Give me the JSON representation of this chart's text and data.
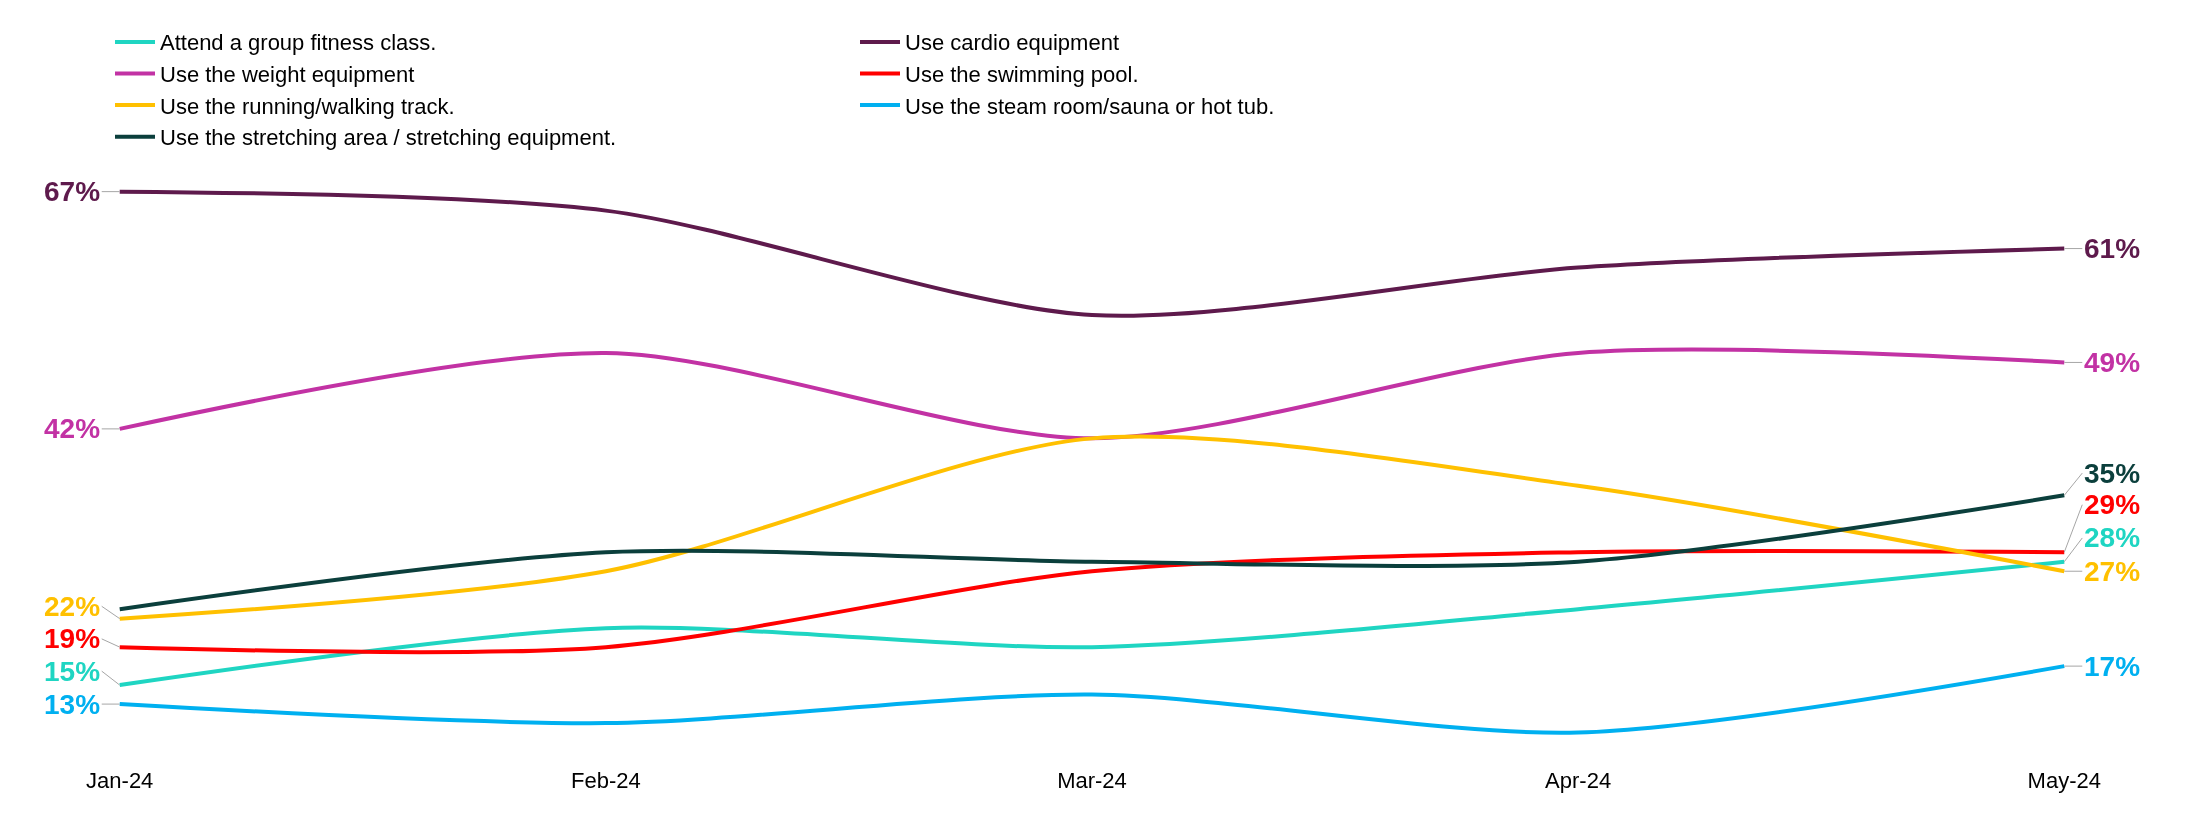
{
  "chart_data": {
    "type": "line",
    "categories": [
      "Jan-24",
      "Feb-24",
      "Mar-24",
      "Apr-24",
      "May-24"
    ],
    "series": [
      {
        "name": "Attend a group fitness class.",
        "color": "#1fd5c2",
        "values": [
          15,
          21,
          19,
          23,
          28
        ],
        "value_labels": [
          "15%",
          null,
          null,
          null,
          "28%"
        ]
      },
      {
        "name": "Use cardio equipment",
        "color": "#5e1a4c",
        "values": [
          67,
          65,
          54,
          59,
          61
        ],
        "value_labels": [
          "67%",
          null,
          null,
          null,
          "61%"
        ]
      },
      {
        "name": "Use the weight equipment",
        "color": "#c232a4",
        "values": [
          42,
          50,
          41,
          50,
          49
        ],
        "value_labels": [
          "42%",
          null,
          null,
          null,
          "49%"
        ]
      },
      {
        "name": "Use the swimming pool.",
        "color": "#ff0000",
        "values": [
          19,
          19,
          27,
          29,
          29
        ],
        "value_labels": [
          "19%",
          null,
          null,
          null,
          "29%"
        ]
      },
      {
        "name": "Use the running/walking track.",
        "color": "#ffc000",
        "values": [
          22,
          27,
          41,
          36,
          27
        ],
        "value_labels": [
          "22%",
          null,
          null,
          null,
          "27%"
        ]
      },
      {
        "name": "Use the steam room/sauna or hot tub.",
        "color": "#00b0f0",
        "values": [
          13,
          11,
          14,
          10,
          17
        ],
        "value_labels": [
          "13%",
          null,
          null,
          null,
          "17%"
        ]
      },
      {
        "name": "Use the stretching area / stretching equipment.",
        "color": "#0b3f3c",
        "values": [
          23,
          29,
          28,
          28,
          35
        ],
        "value_labels": [
          null,
          null,
          null,
          null,
          "35%"
        ]
      }
    ],
    "legend": "top",
    "marker": "none",
    "line_style": "solid",
    "tick_labels": "x"
  }
}
